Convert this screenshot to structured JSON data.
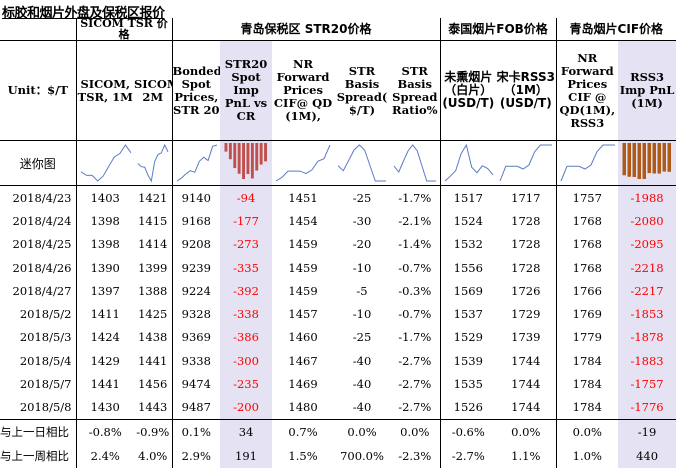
{
  "title": "标胶和烟片外盘及保税区报价",
  "groups": {
    "sicom": "SICOM TSR 价格",
    "qingdao_str20": "青岛保税区 STR20价格",
    "thai_fob": "泰国烟片FOB价格",
    "qingdao_cif": "青岛烟片CIF价格"
  },
  "columns": [
    "Unit：$/T",
    "SICOM, TSR, 1M",
    "SICOM,TSR, 2M",
    "Bonded Spot Prices, STR 20",
    "STR20 Spot Imp PnL vs CR",
    "NR Forward Prices CIF@ QD (1M),",
    "STR Basis Spread( $/T)",
    "STR Basis Spread Ratio%",
    "未熏烟片（白片）(USD/T)",
    "宋卡RSS3（1M）(USD/T)",
    "NR Forward Prices CIF @ QD(1M), RSS3",
    "RSS3 Imp PnL (1M)"
  ],
  "spark_label": "迷你图",
  "rows": [
    [
      "2018/4/23",
      "1403",
      "1421",
      "9140",
      "-94",
      "1451",
      "-25",
      "-1.7%",
      "1517",
      "1717",
      "1757",
      "-1988"
    ],
    [
      "2018/4/24",
      "1398",
      "1415",
      "9168",
      "-177",
      "1454",
      "-30",
      "-2.1%",
      "1524",
      "1728",
      "1768",
      "-2080"
    ],
    [
      "2018/4/25",
      "1398",
      "1414",
      "9208",
      "-273",
      "1459",
      "-20",
      "-1.4%",
      "1532",
      "1728",
      "1768",
      "-2095"
    ],
    [
      "2018/4/26",
      "1390",
      "1399",
      "9239",
      "-335",
      "1459",
      "-10",
      "-0.7%",
      "1556",
      "1728",
      "1768",
      "-2218"
    ],
    [
      "2018/4/27",
      "1397",
      "1388",
      "9224",
      "-392",
      "1459",
      "-5",
      "-0.3%",
      "1569",
      "1726",
      "1766",
      "-2217"
    ],
    [
      "2018/5/2",
      "1411",
      "1425",
      "9328",
      "-338",
      "1457",
      "-10",
      "-0.7%",
      "1537",
      "1729",
      "1769",
      "-1853"
    ],
    [
      "2018/5/3",
      "1424",
      "1438",
      "9369",
      "-386",
      "1460",
      "-25",
      "-1.7%",
      "1529",
      "1739",
      "1779",
      "-1878"
    ],
    [
      "2018/5/4",
      "1429",
      "1441",
      "9338",
      "-300",
      "1467",
      "-40",
      "-2.7%",
      "1539",
      "1744",
      "1784",
      "-1883"
    ],
    [
      "2018/5/7",
      "1441",
      "1456",
      "9474",
      "-235",
      "1469",
      "-40",
      "-2.7%",
      "1535",
      "1744",
      "1784",
      "-1757"
    ],
    [
      "2018/5/8",
      "1430",
      "1443",
      "9487",
      "-200",
      "1480",
      "-40",
      "-2.7%",
      "1526",
      "1744",
      "1784",
      "-1776"
    ]
  ],
  "footer": [
    [
      "与上一日相比",
      "-0.8%",
      "-0.9%",
      "0.1%",
      "34",
      "0.7%",
      "0.0%",
      "0.0%",
      "-0.6%",
      "0.0%",
      "0.0%",
      "-19"
    ],
    [
      "与上一周相比",
      "2.4%",
      "4.0%",
      "2.9%",
      "191",
      "1.5%",
      "700.0%",
      "-2.3%",
      "-2.7%",
      "1.1%",
      "1.0%",
      "440"
    ]
  ],
  "colors": {
    "negative": "#ff0000",
    "highlight": "#e5e3f3",
    "line_spark": "#5b7cc4",
    "bar_red": "#c0504d",
    "bar_brown": "#b05a1a"
  }
}
